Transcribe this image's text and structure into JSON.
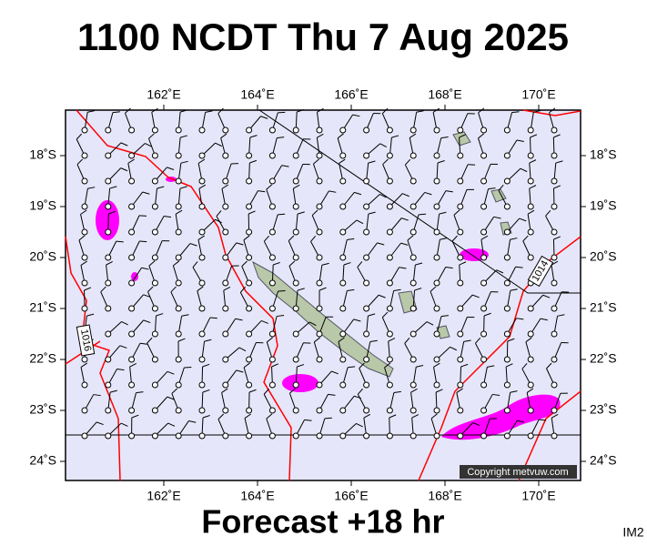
{
  "header": {
    "title": "1100 NCDT Thu 7 Aug 2025"
  },
  "map": {
    "longitude_labels": [
      "162˚E",
      "164˚E",
      "166˚E",
      "168˚E",
      "170˚E"
    ],
    "latitude_labels": [
      "18˚S",
      "19˚S",
      "20˚S",
      "21˚S",
      "22˚S",
      "23˚S",
      "24˚S"
    ],
    "isobar_labels": [
      "1016",
      "1014"
    ],
    "copyright": "Copyright metvuw.com"
  },
  "footer": {
    "forecast": "Forecast +18 hr",
    "image_id": "IM2"
  }
}
